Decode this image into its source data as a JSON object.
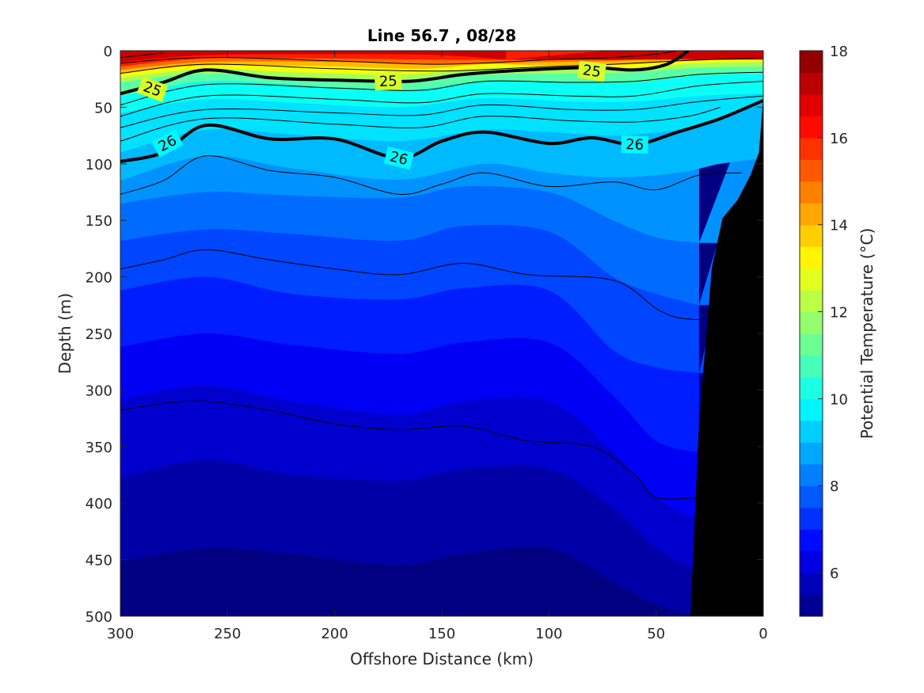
{
  "chart_data": {
    "type": "heatmap",
    "title": "Line 56.7 , 08/28",
    "xlabel": "Offshore Distance (km)",
    "ylabel": "Depth (m)",
    "xlim": [
      300,
      0
    ],
    "ylim": [
      0,
      500
    ],
    "x_reversed": true,
    "y_reversed": true,
    "x_ticks": [
      300,
      250,
      200,
      150,
      100,
      50,
      0
    ],
    "y_ticks": [
      0,
      50,
      100,
      150,
      200,
      250,
      300,
      350,
      400,
      450,
      500
    ],
    "x_tick_labels": [
      "300",
      "250",
      "200",
      "150",
      "100",
      "50",
      "0"
    ],
    "y_tick_labels": [
      "0",
      "50",
      "100",
      "150",
      "200",
      "250",
      "300",
      "350",
      "400",
      "450",
      "500"
    ],
    "colorbar": {
      "label": "Potential Temperature (°C)",
      "range": [
        5,
        18
      ],
      "step": 0.5,
      "colormap": "jet",
      "ticks": [
        6,
        8,
        10,
        12,
        14,
        16,
        18
      ],
      "tick_labels": [
        "6",
        "8",
        "10",
        "12",
        "14",
        "16",
        "18"
      ]
    },
    "temperature_isotherms": [
      {
        "temp": 17.0,
        "points": [
          [
            300,
            10
          ],
          [
            260,
            4
          ],
          [
            200,
            3
          ],
          [
            150,
            4
          ],
          [
            120,
            8
          ]
        ]
      },
      {
        "temp": 16.0,
        "points": [
          [
            300,
            14
          ],
          [
            260,
            7
          ],
          [
            200,
            7
          ],
          [
            150,
            8
          ],
          [
            100,
            8
          ],
          [
            60,
            8
          ],
          [
            40,
            4
          ]
        ]
      },
      {
        "temp": 15.0,
        "points": [
          [
            300,
            17
          ],
          [
            260,
            10
          ],
          [
            200,
            10
          ],
          [
            150,
            12
          ],
          [
            100,
            10
          ],
          [
            70,
            9
          ],
          [
            40,
            6
          ],
          [
            20,
            4
          ]
        ]
      },
      {
        "temp": 14.0,
        "points": [
          [
            300,
            20
          ],
          [
            260,
            13
          ],
          [
            200,
            14
          ],
          [
            160,
            16
          ],
          [
            130,
            12
          ],
          [
            100,
            13
          ],
          [
            60,
            12
          ],
          [
            30,
            8
          ],
          [
            0,
            6
          ]
        ]
      },
      {
        "temp": 13.0,
        "points": [
          [
            300,
            24
          ],
          [
            260,
            16
          ],
          [
            220,
            19
          ],
          [
            170,
            21
          ],
          [
            130,
            16
          ],
          [
            90,
            16
          ],
          [
            60,
            15
          ],
          [
            30,
            11
          ],
          [
            0,
            10
          ]
        ]
      },
      {
        "temp": 12.0,
        "points": [
          [
            300,
            28
          ],
          [
            260,
            20
          ],
          [
            220,
            24
          ],
          [
            170,
            27
          ],
          [
            130,
            21
          ],
          [
            90,
            20
          ],
          [
            60,
            19
          ],
          [
            30,
            15
          ],
          [
            0,
            14
          ]
        ]
      },
      {
        "temp": 11.0,
        "points": [
          [
            300,
            40
          ],
          [
            260,
            27
          ],
          [
            220,
            30
          ],
          [
            170,
            35
          ],
          [
            130,
            27
          ],
          [
            90,
            28
          ],
          [
            60,
            28
          ],
          [
            30,
            22
          ],
          [
            0,
            20
          ]
        ]
      },
      {
        "temp": 10.0,
        "points": [
          [
            300,
            55
          ],
          [
            260,
            43
          ],
          [
            220,
            46
          ],
          [
            170,
            50
          ],
          [
            130,
            42
          ],
          [
            90,
            45
          ],
          [
            60,
            45
          ],
          [
            30,
            40
          ],
          [
            0,
            38
          ]
        ]
      },
      {
        "temp": 9.5,
        "points": [
          [
            300,
            90
          ],
          [
            260,
            70
          ],
          [
            220,
            74
          ],
          [
            170,
            80
          ],
          [
            130,
            70
          ],
          [
            100,
            72
          ],
          [
            70,
            75
          ],
          [
            40,
            70
          ],
          [
            20,
            60
          ],
          [
            0,
            45
          ]
        ]
      },
      {
        "temp": 9.0,
        "points": [
          [
            300,
            115
          ],
          [
            260,
            93
          ],
          [
            220,
            104
          ],
          [
            170,
            114
          ],
          [
            130,
            100
          ],
          [
            100,
            108
          ],
          [
            70,
            112
          ],
          [
            40,
            108
          ],
          [
            20,
            100
          ],
          [
            0,
            95
          ]
        ]
      },
      {
        "temp": 8.5,
        "points": [
          [
            300,
            135
          ],
          [
            260,
            125
          ],
          [
            220,
            128
          ],
          [
            170,
            130
          ],
          [
            140,
            120
          ],
          [
            100,
            125
          ],
          [
            70,
            150
          ],
          [
            50,
            165
          ],
          [
            30,
            170
          ]
        ]
      },
      {
        "temp": 8.0,
        "points": [
          [
            300,
            168
          ],
          [
            260,
            158
          ],
          [
            220,
            162
          ],
          [
            170,
            168
          ],
          [
            140,
            155
          ],
          [
            100,
            160
          ],
          [
            70,
            200
          ],
          [
            50,
            215
          ],
          [
            30,
            225
          ]
        ]
      },
      {
        "temp": 7.5,
        "points": [
          [
            300,
            212
          ],
          [
            260,
            200
          ],
          [
            220,
            215
          ],
          [
            170,
            220
          ],
          [
            140,
            210
          ],
          [
            100,
            212
          ],
          [
            70,
            265
          ],
          [
            50,
            280
          ],
          [
            30,
            285
          ]
        ]
      },
      {
        "temp": 7.0,
        "points": [
          [
            300,
            262
          ],
          [
            260,
            250
          ],
          [
            220,
            260
          ],
          [
            170,
            268
          ],
          [
            140,
            258
          ],
          [
            100,
            258
          ],
          [
            70,
            305
          ],
          [
            50,
            345
          ],
          [
            30,
            355
          ]
        ]
      },
      {
        "temp": 6.5,
        "points": [
          [
            300,
            308
          ],
          [
            260,
            296
          ],
          [
            220,
            310
          ],
          [
            170,
            322
          ],
          [
            140,
            310
          ],
          [
            100,
            310
          ],
          [
            70,
            355
          ],
          [
            50,
            395
          ],
          [
            30,
            415
          ]
        ]
      },
      {
        "temp": 6.0,
        "points": [
          [
            300,
            378
          ],
          [
            260,
            362
          ],
          [
            220,
            375
          ],
          [
            170,
            380
          ],
          [
            140,
            370
          ],
          [
            100,
            370
          ],
          [
            70,
            405
          ],
          [
            50,
            440
          ],
          [
            30,
            460
          ]
        ]
      },
      {
        "temp": 5.5,
        "points": [
          [
            300,
            452
          ],
          [
            260,
            440
          ],
          [
            220,
            445
          ],
          [
            170,
            455
          ],
          [
            140,
            445
          ],
          [
            100,
            440
          ],
          [
            70,
            470
          ],
          [
            50,
            490
          ],
          [
            30,
            500
          ]
        ]
      },
      {
        "temp": 5.0,
        "points": [
          [
            300,
            520
          ],
          [
            0,
            520
          ]
        ]
      }
    ],
    "density_contours": [
      {
        "level": "24.4",
        "label": "",
        "bold": false,
        "points": [
          [
            300,
            6
          ],
          [
            280,
            2
          ]
        ]
      },
      {
        "level": "24.6",
        "label": "",
        "bold": false,
        "points": [
          [
            300,
            11
          ],
          [
            260,
            6
          ],
          [
            200,
            9
          ],
          [
            150,
            12
          ],
          [
            100,
            8
          ],
          [
            70,
            6
          ],
          [
            50,
            3
          ],
          [
            40,
            0
          ]
        ]
      },
      {
        "level": "24.8",
        "label": "",
        "bold": false,
        "points": [
          [
            300,
            20
          ],
          [
            260,
            12
          ],
          [
            200,
            16
          ],
          [
            150,
            18
          ],
          [
            100,
            14
          ],
          [
            70,
            12
          ],
          [
            40,
            9
          ],
          [
            0,
            6
          ]
        ]
      },
      {
        "level": "25",
        "label": "25",
        "bold": true,
        "points": [
          [
            300,
            38
          ],
          [
            280,
            28
          ],
          [
            260,
            17
          ],
          [
            230,
            24
          ],
          [
            200,
            26
          ],
          [
            165,
            27
          ],
          [
            140,
            21
          ],
          [
            110,
            17
          ],
          [
            80,
            15
          ],
          [
            60,
            17
          ],
          [
            45,
            12
          ],
          [
            35,
            0
          ]
        ]
      },
      {
        "level": "25.2",
        "label": "",
        "bold": false,
        "points": [
          [
            300,
            48
          ],
          [
            260,
            30
          ],
          [
            200,
            33
          ],
          [
            160,
            35
          ],
          [
            130,
            27
          ],
          [
            90,
            28
          ],
          [
            60,
            27
          ],
          [
            30,
            21
          ],
          [
            0,
            19
          ]
        ]
      },
      {
        "level": "25.4",
        "label": "",
        "bold": false,
        "points": [
          [
            300,
            58
          ],
          [
            260,
            40
          ],
          [
            200,
            43
          ],
          [
            160,
            46
          ],
          [
            130,
            38
          ],
          [
            90,
            40
          ],
          [
            60,
            40
          ],
          [
            30,
            31
          ],
          [
            0,
            27
          ]
        ]
      },
      {
        "level": "25.6",
        "label": "",
        "bold": false,
        "points": [
          [
            300,
            68
          ],
          [
            260,
            52
          ],
          [
            200,
            55
          ],
          [
            160,
            57
          ],
          [
            130,
            48
          ],
          [
            90,
            52
          ],
          [
            60,
            52
          ],
          [
            30,
            45
          ],
          [
            0,
            40
          ]
        ]
      },
      {
        "level": "25.8",
        "label": "",
        "bold": false,
        "points": [
          [
            300,
            80
          ],
          [
            260,
            60
          ],
          [
            200,
            65
          ],
          [
            160,
            68
          ],
          [
            130,
            58
          ],
          [
            90,
            62
          ],
          [
            60,
            63
          ],
          [
            35,
            58
          ],
          [
            20,
            50
          ]
        ]
      },
      {
        "level": "26",
        "label": "26",
        "bold": true,
        "points": [
          [
            300,
            98
          ],
          [
            280,
            90
          ],
          [
            260,
            66
          ],
          [
            230,
            78
          ],
          [
            200,
            78
          ],
          [
            170,
            95
          ],
          [
            150,
            80
          ],
          [
            130,
            72
          ],
          [
            100,
            82
          ],
          [
            80,
            77
          ],
          [
            60,
            83
          ],
          [
            40,
            72
          ],
          [
            20,
            60
          ],
          [
            0,
            44
          ]
        ]
      },
      {
        "level": "26.2",
        "label": "",
        "bold": false,
        "points": [
          [
            300,
            127
          ],
          [
            280,
            115
          ],
          [
            260,
            93
          ],
          [
            230,
            106
          ],
          [
            200,
            112
          ],
          [
            170,
            127
          ],
          [
            150,
            118
          ],
          [
            130,
            108
          ],
          [
            100,
            120
          ],
          [
            70,
            116
          ],
          [
            50,
            123
          ],
          [
            30,
            110
          ],
          [
            10,
            108
          ]
        ]
      },
      {
        "level": "26.4",
        "label": "",
        "bold": false,
        "points": [
          [
            300,
            193
          ],
          [
            280,
            185
          ],
          [
            260,
            176
          ],
          [
            230,
            185
          ],
          [
            200,
            193
          ],
          [
            170,
            198
          ],
          [
            140,
            188
          ],
          [
            110,
            198
          ],
          [
            70,
            203
          ],
          [
            50,
            228
          ],
          [
            40,
            236
          ],
          [
            28,
            238
          ]
        ]
      },
      {
        "level": "26.6",
        "label": "",
        "bold": false,
        "points": [
          [
            300,
            318
          ],
          [
            280,
            312
          ],
          [
            260,
            310
          ],
          [
            230,
            318
          ],
          [
            200,
            330
          ],
          [
            170,
            335
          ],
          [
            140,
            332
          ],
          [
            110,
            345
          ],
          [
            80,
            350
          ],
          [
            60,
            375
          ],
          [
            50,
            395
          ],
          [
            30,
            395
          ]
        ]
      }
    ],
    "bathymetry": {
      "color": "#000000",
      "points": [
        [
          34,
          500
        ],
        [
          30,
          330
        ],
        [
          24,
          192
        ],
        [
          19,
          148
        ],
        [
          12,
          132
        ],
        [
          6,
          110
        ],
        [
          2,
          90
        ],
        [
          0,
          40
        ],
        [
          0,
          500
        ]
      ]
    }
  }
}
